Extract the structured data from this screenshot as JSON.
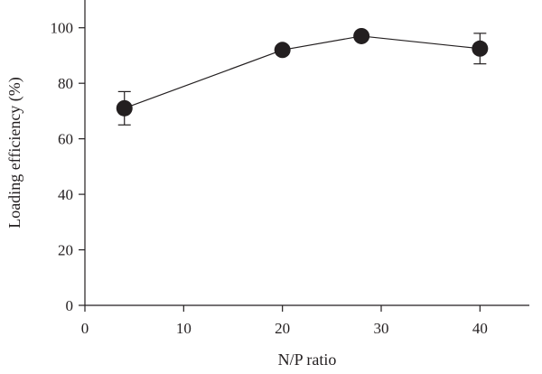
{
  "chart_data": {
    "type": "line",
    "title": "",
    "xlabel": "N/P ratio",
    "ylabel": "Loading efficiency (%)",
    "xlim": [
      0,
      45
    ],
    "ylim": [
      0,
      110
    ],
    "xticks": [
      0,
      10,
      20,
      30,
      40
    ],
    "yticks": [
      0,
      20,
      40,
      60,
      80,
      100
    ],
    "grid": false,
    "series": [
      {
        "x": [
          4,
          20,
          28,
          40
        ],
        "y": [
          71,
          92,
          97,
          92.5
        ],
        "error": [
          6,
          0,
          0,
          5.5
        ],
        "color": "#231f20",
        "marker": "filled-circle"
      }
    ]
  }
}
